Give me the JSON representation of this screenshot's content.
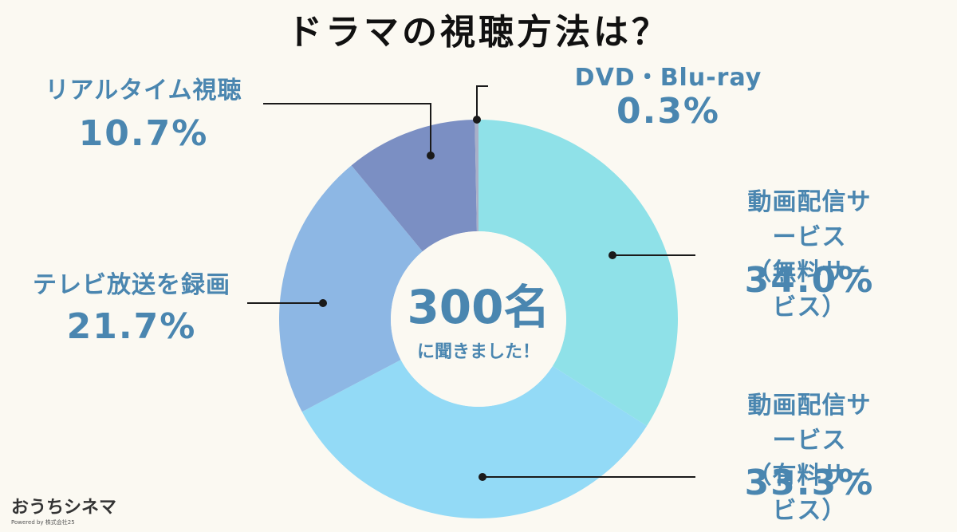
{
  "chart_data": {
    "type": "donut",
    "title": "ドラマの視聴方法は？",
    "center_title": "300名",
    "center_subtitle": "に聞きました！",
    "categories": [
      "動画配信サービス\n（無料サービス）",
      "動画配信サービス\n（有料サービス）",
      "テレビ放送を録画",
      "リアルタイム視聴",
      "DVD・Blu-ray"
    ],
    "values": [
      34.0,
      33.3,
      21.7,
      10.7,
      0.3
    ],
    "value_labels": [
      "34.0%",
      "33.3%",
      "21.7%",
      "10.7%",
      "0.3%"
    ],
    "colors": [
      "#8fe1e8",
      "#93daf6",
      "#8db7e4",
      "#7b8fc3",
      "#a9b0c8"
    ]
  },
  "logo": {
    "name": "おうちシネマ",
    "tagline": "Powered by 株式会社25"
  }
}
